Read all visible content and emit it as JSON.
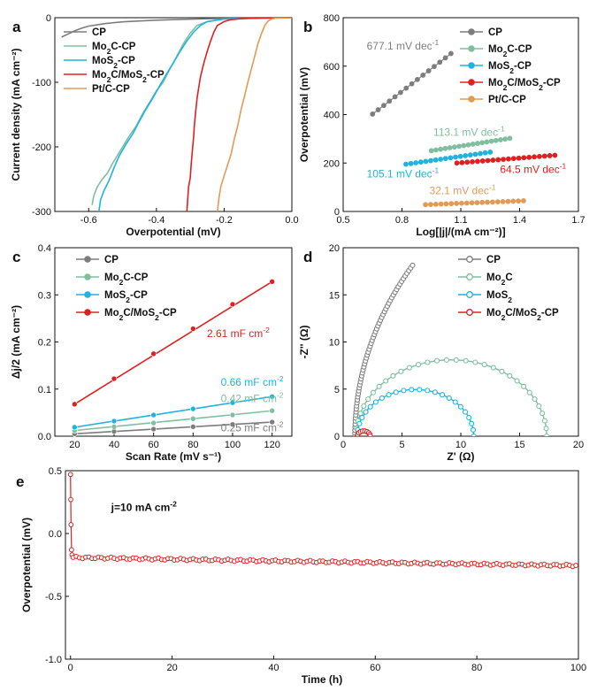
{
  "colors": {
    "CP": "#7d7d7d",
    "Mo2C": "#7fbf9f",
    "MoS2": "#1fb3e0",
    "Mo2C/MoS2": "#e02020",
    "Pt/C": "#e39a55"
  },
  "chart_data": [
    {
      "id": "a",
      "panel_label": "a",
      "type": "line",
      "title": "",
      "xlabel": "Overpotential (mV)",
      "ylabel": "Current density (mA cm⁻²)",
      "xlim": [
        -0.7,
        0.0
      ],
      "ylim": [
        -300,
        0
      ],
      "xticks": [
        -0.6,
        -0.4,
        -0.2,
        0.0
      ],
      "xtick_labels": [
        "-0.6",
        "-0.4",
        "-0.2",
        "0.0"
      ],
      "yticks": [
        -300,
        -200,
        -100,
        0
      ],
      "ytick_labels": [
        "-300",
        "-200",
        "-100",
        "0"
      ],
      "legend": "top-left",
      "series": [
        {
          "name": "CP",
          "label_parts": [
            [
              "CP",
              ""
            ]
          ],
          "color_key": "CP",
          "x": [
            -0.68,
            -0.66,
            -0.64,
            -0.62,
            -0.6,
            -0.55,
            -0.5,
            -0.45,
            -0.4,
            -0.35,
            -0.3,
            -0.25,
            -0.2,
            -0.15,
            -0.1,
            -0.05,
            0.0
          ],
          "y": [
            -30,
            -25,
            -20,
            -16,
            -13,
            -9,
            -6.5,
            -5,
            -3.8,
            -3,
            -2.3,
            -1.7,
            -1.2,
            -0.8,
            -0.5,
            -0.2,
            0
          ]
        },
        {
          "name": "Mo2C-CP",
          "label_parts": [
            [
              "Mo",
              ""
            ],
            [
              "2",
              "sub"
            ],
            [
              "C-CP",
              ""
            ]
          ],
          "color_key": "Mo2C",
          "x": [
            -0.59,
            -0.585,
            -0.575,
            -0.56,
            -0.545,
            -0.53,
            -0.515,
            -0.5,
            -0.48,
            -0.46,
            -0.44,
            -0.42,
            -0.4,
            -0.38,
            -0.36,
            -0.34,
            -0.32,
            -0.3,
            -0.28,
            -0.25,
            -0.2,
            -0.1,
            0.0
          ],
          "y": [
            -290,
            -276,
            -262,
            -250,
            -241,
            -226,
            -213,
            -200,
            -183,
            -168,
            -148,
            -131,
            -113,
            -100,
            -79,
            -60,
            -40,
            -24,
            -12,
            -6,
            -2,
            -0.5,
            0
          ]
        },
        {
          "name": "MoS2-CP",
          "label_parts": [
            [
              "MoS",
              ""
            ],
            [
              "2",
              "sub"
            ],
            [
              "-CP",
              ""
            ]
          ],
          "color_key": "MoS2",
          "x": [
            -0.57,
            -0.565,
            -0.555,
            -0.54,
            -0.525,
            -0.51,
            -0.49,
            -0.47,
            -0.45,
            -0.43,
            -0.41,
            -0.39,
            -0.37,
            -0.35,
            -0.33,
            -0.31,
            -0.29,
            -0.27,
            -0.25,
            -0.2,
            -0.1,
            0.0
          ],
          "y": [
            -300,
            -282,
            -268,
            -252,
            -232,
            -214,
            -196,
            -180,
            -160,
            -141,
            -124,
            -105,
            -87,
            -70,
            -52,
            -36,
            -22,
            -12,
            -6,
            -2,
            -0.5,
            0
          ]
        },
        {
          "name": "Mo2C/MoS2-CP",
          "label_parts": [
            [
              "Mo",
              ""
            ],
            [
              "2",
              "sub"
            ],
            [
              "C/MoS",
              ""
            ],
            [
              "2",
              "sub"
            ],
            [
              "-CP",
              ""
            ]
          ],
          "color_key": "Mo2C/MoS2",
          "x": [
            -0.31,
            -0.305,
            -0.3,
            -0.298,
            -0.295,
            -0.29,
            -0.288,
            -0.285,
            -0.28,
            -0.275,
            -0.27,
            -0.26,
            -0.25,
            -0.24,
            -0.23,
            -0.22,
            -0.2,
            -0.18,
            -0.15,
            -0.1,
            0.0
          ],
          "y": [
            -300,
            -262,
            -248,
            -232,
            -212,
            -183,
            -168,
            -150,
            -125,
            -108,
            -92,
            -70,
            -52,
            -36,
            -22,
            -12,
            -6,
            -3,
            -1.5,
            -0.5,
            0
          ]
        },
        {
          "name": "Pt/C-CP",
          "label_parts": [
            [
              "Pt/C-CP",
              ""
            ]
          ],
          "color_key": "Pt/C",
          "x": [
            -0.22,
            -0.215,
            -0.21,
            -0.2,
            -0.19,
            -0.18,
            -0.17,
            -0.16,
            -0.15,
            -0.14,
            -0.13,
            -0.12,
            -0.11,
            -0.1,
            -0.09,
            -0.08,
            -0.07,
            -0.06,
            -0.05,
            -0.03,
            0.0
          ],
          "y": [
            -300,
            -278,
            -262,
            -245,
            -228,
            -212,
            -188,
            -168,
            -142,
            -122,
            -100,
            -80,
            -60,
            -40,
            -25,
            -12,
            -5,
            -2,
            -1,
            -0.3,
            0
          ]
        }
      ]
    },
    {
      "id": "b",
      "panel_label": "b",
      "type": "scatter",
      "title": "",
      "xlabel": "Log[|j|/(mA cm⁻²)]",
      "ylabel": "Overpotential (mV)",
      "xlim": [
        0.5,
        1.7
      ],
      "ylim": [
        0,
        800
      ],
      "xticks": [
        0.5,
        0.8,
        1.1,
        1.4,
        1.7
      ],
      "xtick_labels": [
        "0.5",
        "0.8",
        "1.1",
        "1.4",
        "1.7"
      ],
      "yticks": [
        0,
        200,
        400,
        600,
        800
      ],
      "ytick_labels": [
        "0",
        "200",
        "400",
        "600",
        "800"
      ],
      "legend": "top-right",
      "series": [
        {
          "name": "CP",
          "label_parts": [
            [
              "CP",
              ""
            ]
          ],
          "color_key": "CP",
          "x_range": [
            0.65,
            1.05
          ],
          "y_range": [
            402,
            652
          ],
          "n": 15
        },
        {
          "name": "Mo2C-CP",
          "label_parts": [
            [
              "Mo",
              ""
            ],
            [
              "2",
              "sub"
            ],
            [
              "C-CP",
              ""
            ]
          ],
          "color_key": "Mo2C",
          "x_range": [
            0.95,
            1.35
          ],
          "y_range": [
            251,
            302
          ],
          "n": 18
        },
        {
          "name": "MoS2-CP",
          "label_parts": [
            [
              "MoS",
              ""
            ],
            [
              "2",
              "sub"
            ],
            [
              "-CP",
              ""
            ]
          ],
          "color_key": "MoS2",
          "x_range": [
            0.82,
            1.25
          ],
          "y_range": [
            195,
            245
          ],
          "n": 18
        },
        {
          "name": "Mo2C/MoS2-CP",
          "label_parts": [
            [
              "Mo",
              ""
            ],
            [
              "2",
              "sub"
            ],
            [
              "C/MoS",
              ""
            ],
            [
              "2",
              "sub"
            ],
            [
              "-CP",
              ""
            ]
          ],
          "color_key": "Mo2C/MoS2",
          "x_range": [
            1.08,
            1.58
          ],
          "y_range": [
            200,
            232
          ],
          "n": 20
        },
        {
          "name": "Pt/C-CP",
          "label_parts": [
            [
              "Pt/C-CP",
              ""
            ]
          ],
          "color_key": "Pt/C",
          "x_range": [
            0.92,
            1.42
          ],
          "y_range": [
            28,
            44
          ],
          "n": 20
        }
      ],
      "annotations": [
        {
          "value": "677.1",
          "unit": "mV dec",
          "sup": "-1",
          "color_key": "CP",
          "x": 0.62,
          "y": 668
        },
        {
          "value": "113.1",
          "unit": "mV dec",
          "sup": "-1",
          "color_key": "Mo2C",
          "x": 0.96,
          "y": 312
        },
        {
          "value": "105.1",
          "unit": "mV dec",
          "sup": "-1",
          "color_key": "MoS2",
          "x": 0.62,
          "y": 140
        },
        {
          "value": "64.5",
          "unit": "mV dec",
          "sup": "-1",
          "color_key": "Mo2C/MoS2",
          "x": 1.3,
          "y": 158
        },
        {
          "value": "32.1",
          "unit": "mV dec",
          "sup": "-1",
          "color_key": "Pt/C",
          "x": 0.94,
          "y": 72
        }
      ]
    },
    {
      "id": "c",
      "panel_label": "c",
      "type": "scatter",
      "title": "",
      "xlabel": "Scan Rate (mV s⁻¹)",
      "ylabel": "Δj/2 (mA cm⁻²)",
      "xlim": [
        10,
        130
      ],
      "ylim": [
        0.0,
        0.4
      ],
      "xticks": [
        20,
        40,
        60,
        80,
        100,
        120
      ],
      "xtick_labels": [
        "20",
        "40",
        "60",
        "80",
        "100",
        "120"
      ],
      "yticks": [
        0.0,
        0.1,
        0.2,
        0.3,
        0.4
      ],
      "ytick_labels": [
        "0.0",
        "0.1",
        "0.2",
        "0.3",
        "0.4"
      ],
      "legend": "top-left",
      "series": [
        {
          "name": "CP",
          "label_parts": [
            [
              "CP",
              ""
            ]
          ],
          "color_key": "CP",
          "x": [
            20,
            40,
            60,
            80,
            100,
            120
          ],
          "y": [
            0.005,
            0.01,
            0.015,
            0.02,
            0.025,
            0.03
          ]
        },
        {
          "name": "Mo2C-CP",
          "label_parts": [
            [
              "Mo",
              ""
            ],
            [
              "2",
              "sub"
            ],
            [
              "C-CP",
              ""
            ]
          ],
          "color_key": "Mo2C",
          "x": [
            20,
            40,
            60,
            80,
            100,
            120
          ],
          "y": [
            0.012,
            0.02,
            0.028,
            0.037,
            0.045,
            0.054
          ]
        },
        {
          "name": "MoS2-CP",
          "label_parts": [
            [
              "MoS",
              ""
            ],
            [
              "2",
              "sub"
            ],
            [
              "-CP",
              ""
            ]
          ],
          "color_key": "MoS2",
          "x": [
            20,
            40,
            60,
            80,
            100,
            120
          ],
          "y": [
            0.019,
            0.032,
            0.045,
            0.058,
            0.071,
            0.084
          ]
        },
        {
          "name": "Mo2C/MoS2-CP",
          "label_parts": [
            [
              "Mo",
              ""
            ],
            [
              "2",
              "sub"
            ],
            [
              "C/MoS",
              ""
            ],
            [
              "2",
              "sub"
            ],
            [
              "-CP",
              ""
            ]
          ],
          "color_key": "Mo2C/MoS2",
          "x": [
            20,
            40,
            60,
            80,
            100,
            120
          ],
          "y": [
            0.068,
            0.122,
            0.175,
            0.228,
            0.28,
            0.328
          ]
        }
      ],
      "annotations": [
        {
          "value": "2.61",
          "unit": "mF cm",
          "sup": "-2",
          "color_key": "Mo2C/MoS2",
          "x": 87,
          "y": 0.21
        },
        {
          "value": "0.66",
          "unit": "mF cm",
          "sup": "-2",
          "color_key": "MoS2",
          "x": 94,
          "y": 0.107
        },
        {
          "value": "0.42",
          "unit": "mF cm",
          "sup": "-2",
          "color_key": "Mo2C",
          "x": 94,
          "y": 0.072
        },
        {
          "value": "0.25",
          "unit": "mF cm",
          "sup": "-2",
          "color_key": "CP",
          "x": 94,
          "y": 0.01
        }
      ]
    },
    {
      "id": "d",
      "panel_label": "d",
      "type": "scatter",
      "title": "",
      "xlabel": "Z' (Ω)",
      "ylabel": "-Z'' (Ω)",
      "xlim": [
        0,
        20
      ],
      "ylim": [
        0,
        20
      ],
      "xticks": [
        0,
        5,
        10,
        15,
        20
      ],
      "xtick_labels": [
        "0",
        "5",
        "10",
        "15",
        "20"
      ],
      "yticks": [
        0,
        5,
        10,
        15,
        20
      ],
      "ytick_labels": [
        "0",
        "5",
        "10",
        "15",
        "20"
      ],
      "legend": "top-right",
      "series": [
        {
          "name": "CP",
          "label_parts": [
            [
              "CP",
              ""
            ]
          ],
          "color_key": "CP",
          "arc": {
            "x0": 1.0,
            "diameter": 72.0,
            "x_end": 5.9,
            "n": 60
          }
        },
        {
          "name": "Mo2C",
          "label_parts": [
            [
              "Mo",
              ""
            ],
            [
              "2",
              "sub"
            ],
            [
              "C",
              ""
            ]
          ],
          "color_key": "Mo2C",
          "arc": {
            "x0": 1.1,
            "diameter": 16.2,
            "n": 32
          }
        },
        {
          "name": "MoS2",
          "label_parts": [
            [
              "MoS",
              ""
            ],
            [
              "2",
              "sub"
            ]
          ],
          "color_key": "MoS2",
          "arc": {
            "x0": 1.2,
            "diameter": 9.9,
            "n": 24
          }
        },
        {
          "name": "Mo2C/MoS2-CP",
          "label_parts": [
            [
              "Mo",
              ""
            ],
            [
              "2",
              "sub"
            ],
            [
              "C/MoS",
              ""
            ],
            [
              "2",
              "sub"
            ],
            [
              "-CP",
              ""
            ]
          ],
          "color_key": "Mo2C/MoS2",
          "arc": {
            "x0": 1.2,
            "diameter": 1.1,
            "n": 10
          }
        }
      ]
    },
    {
      "id": "e",
      "panel_label": "e",
      "type": "scatter",
      "title": "",
      "xlabel": "Time (h)",
      "ylabel": "Overpotential (mV)",
      "xlim": [
        -1,
        100
      ],
      "ylim": [
        -1.0,
        0.5
      ],
      "xticks": [
        0,
        20,
        40,
        60,
        80,
        100
      ],
      "xtick_labels": [
        "0",
        "20",
        "40",
        "60",
        "80",
        "100"
      ],
      "yticks": [
        -1.0,
        -0.5,
        0.0,
        0.5
      ],
      "ytick_labels": [
        "-1.0",
        "-0.5",
        "0.0",
        "0.5"
      ],
      "legend": "none",
      "series": [
        {
          "name": "Mo2C/MoS2-CP",
          "color_key": "Mo2C/MoS2",
          "initial": {
            "x": [
              0.0,
              0.05,
              0.1,
              0.2,
              0.3
            ],
            "y": [
              0.47,
              0.27,
              0.07,
              -0.13,
              -0.17
            ]
          },
          "trace": {
            "t_start": 0.5,
            "t_end": 99.5,
            "n": 160,
            "v_start": -0.19,
            "v_end": -0.255
          }
        }
      ],
      "annotations": [
        {
          "value": "j=10 mA cm",
          "sup": "-2",
          "color_key": "",
          "x": 8,
          "y": 0.18
        }
      ]
    }
  ]
}
